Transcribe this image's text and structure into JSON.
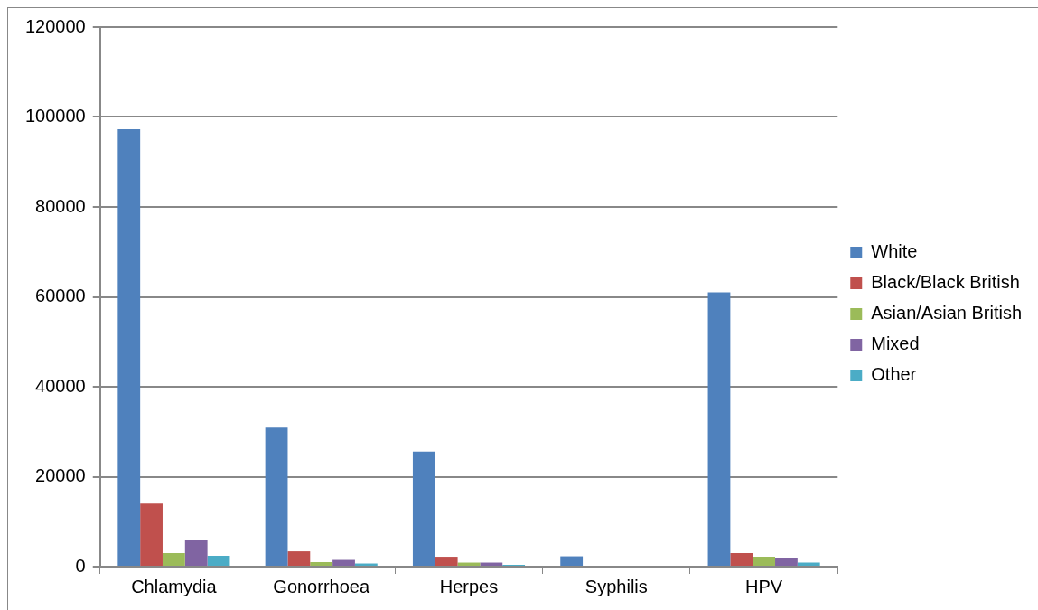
{
  "chart_data": {
    "type": "bar",
    "categories": [
      "Chlamydia",
      "Gonorrhoea",
      "Herpes",
      "Syphilis",
      "HPV"
    ],
    "series": [
      {
        "name": "White",
        "color": "#4f81bd",
        "values": [
          97300,
          30900,
          25600,
          2300,
          61000
        ]
      },
      {
        "name": "Black/Black British",
        "color": "#c0504d",
        "values": [
          14000,
          3400,
          2200,
          200,
          3000
        ]
      },
      {
        "name": "Asian/Asian British",
        "color": "#9bbb59",
        "values": [
          3000,
          1000,
          900,
          null,
          2200
        ]
      },
      {
        "name": "Mixed",
        "color": "#8064a2",
        "values": [
          6000,
          1500,
          900,
          null,
          1800
        ]
      },
      {
        "name": "Other",
        "color": "#4bacc6",
        "values": [
          2400,
          700,
          400,
          null,
          900
        ]
      }
    ],
    "ylim": [
      0,
      120000
    ],
    "yticks": [
      0,
      20000,
      40000,
      60000,
      80000,
      100000,
      120000
    ],
    "grid": "y",
    "legend": "right"
  }
}
